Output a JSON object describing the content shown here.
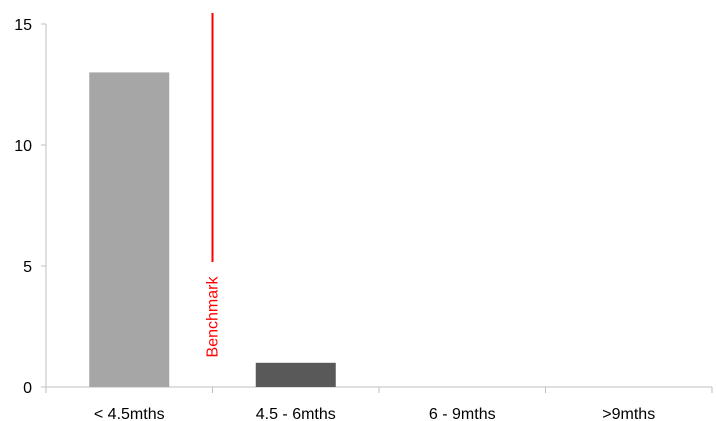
{
  "chart_data": {
    "type": "bar",
    "categories": [
      "< 4.5mths",
      "4.5 - 6mths",
      "6 - 9mths",
      ">9mths"
    ],
    "values": [
      13,
      1,
      0,
      0
    ],
    "bar_colors": [
      "#a6a6a6",
      "#595959",
      "#a6a6a6",
      "#a6a6a6"
    ],
    "ylim": [
      0,
      15
    ],
    "yticks": [
      "0",
      "5",
      "10",
      "15"
    ],
    "grid": false,
    "legend": "none",
    "annotation": {
      "text": "Benchmark",
      "color": "#ff0000",
      "position": "between < 4.5mths and 4.5 - 6mths"
    }
  }
}
